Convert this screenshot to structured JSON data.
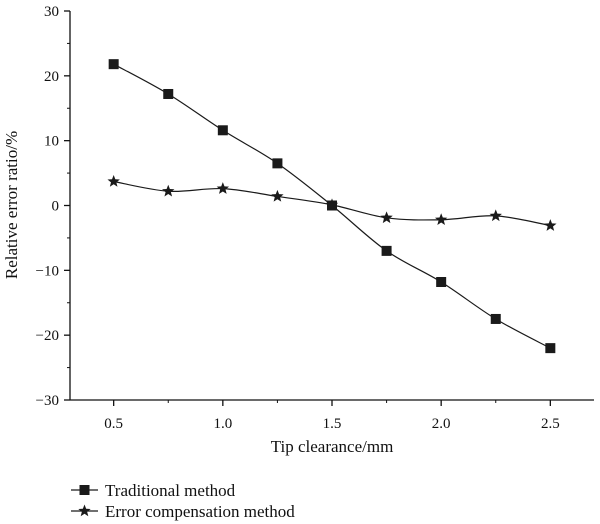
{
  "chart_data": {
    "type": "line",
    "title": "",
    "xlabel": "Tip clearance/mm",
    "ylabel": "Relative error ratio/%",
    "xlim": [
      0.3,
      2.7
    ],
    "ylim": [
      -30,
      30
    ],
    "x_ticks": [
      "0.5",
      "1.0",
      "1.5",
      "2.0",
      "2.5"
    ],
    "y_ticks": [
      "30",
      "20",
      "10",
      "0",
      "−10",
      "−20",
      "−30"
    ],
    "x": [
      0.5,
      0.75,
      1.0,
      1.25,
      1.5,
      1.75,
      2.0,
      2.25,
      2.5
    ],
    "series": [
      {
        "name": "Traditional method",
        "marker": "square",
        "color": "#1a1a1a",
        "values": [
          21.8,
          17.2,
          11.6,
          6.5,
          0.0,
          -7.0,
          -11.8,
          -17.5,
          -22.0
        ]
      },
      {
        "name": "Error compensation method",
        "marker": "star",
        "color": "#1a1a1a",
        "values": [
          3.7,
          2.2,
          2.6,
          1.4,
          0.1,
          -1.9,
          -2.2,
          -1.6,
          -3.1
        ]
      }
    ],
    "grid": false,
    "legend_position": "bottom-left"
  }
}
